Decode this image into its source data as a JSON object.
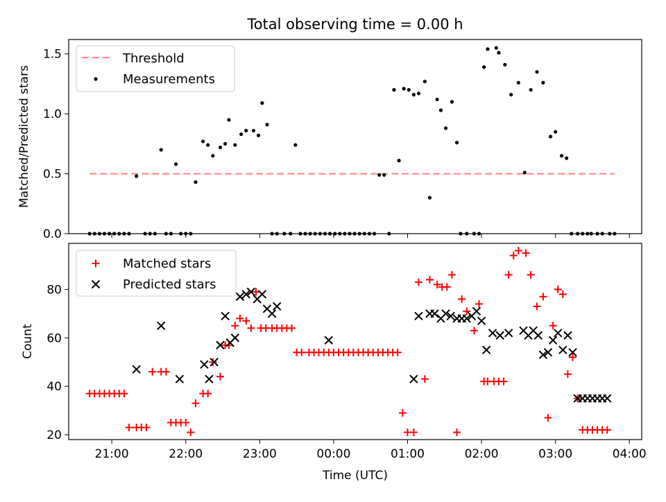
{
  "figure": {
    "title": "Total observing time = 0.00 h"
  },
  "chart_data": [
    {
      "type": "scatter",
      "ylabel": "Matched/Predicted stars",
      "xlabel": "",
      "xlim": [
        "20:25",
        "04:10"
      ],
      "ylim": [
        0,
        1.62
      ],
      "yticks": [
        "0.0",
        "0.5",
        "1.0",
        "1.5"
      ],
      "legend_position": "top-left",
      "threshold": {
        "name": "Threshold",
        "value": 0.5,
        "x_start": "20:42",
        "x_end": "03:48",
        "color": "#ff7f7f",
        "style": "dashed"
      },
      "series": [
        {
          "name": "Measurements",
          "color": "#000000",
          "marker": "dot",
          "x": [
            "20:42",
            "20:46",
            "20:50",
            "20:54",
            "20:58",
            "21:02",
            "21:06",
            "21:10",
            "21:14",
            "21:20",
            "21:27",
            "21:31",
            "21:35",
            "21:40",
            "21:44",
            "21:48",
            "21:52",
            "21:56",
            "22:00",
            "22:04",
            "22:08",
            "22:14",
            "22:18",
            "22:22",
            "22:28",
            "22:32",
            "22:35",
            "22:40",
            "22:45",
            "22:49",
            "22:55",
            "22:59",
            "23:02",
            "23:06",
            "23:10",
            "23:14",
            "23:20",
            "23:25",
            "23:29",
            "23:33",
            "23:37",
            "23:41",
            "23:45",
            "23:49",
            "23:53",
            "23:57",
            "00:01",
            "00:05",
            "00:09",
            "00:13",
            "00:17",
            "00:21",
            "00:25",
            "00:29",
            "00:33",
            "00:37",
            "00:41",
            "00:45",
            "00:49",
            "00:53",
            "00:57",
            "01:01",
            "01:05",
            "01:09",
            "01:14",
            "01:18",
            "01:24",
            "01:27",
            "01:31",
            "01:36",
            "01:40",
            "01:43",
            "01:48",
            "01:54",
            "01:58",
            "02:02",
            "02:05",
            "02:12",
            "02:14",
            "02:19",
            "02:24",
            "02:30",
            "02:35",
            "02:40",
            "02:45",
            "02:50",
            "02:56",
            "03:00",
            "03:05",
            "03:09",
            "03:13",
            "03:18",
            "03:22",
            "03:26",
            "03:29",
            "03:34",
            "03:38",
            "03:44",
            "03:48"
          ],
          "y": [
            0,
            0,
            0,
            0,
            0,
            0,
            0,
            0,
            0,
            0.48,
            0,
            0,
            0,
            0.7,
            0,
            0,
            0.58,
            0,
            0,
            0,
            0.43,
            0.77,
            0.74,
            0.65,
            0.72,
            0.75,
            0.95,
            0.74,
            0.83,
            0.86,
            0.86,
            0.82,
            1.09,
            0.91,
            0,
            0,
            0,
            0,
            0.74,
            0,
            0,
            0,
            0,
            0,
            0,
            0,
            0,
            0,
            0,
            0,
            0,
            0,
            0,
            0,
            0,
            0.49,
            0.49,
            0,
            1.2,
            0.61,
            1.21,
            1.2,
            1.16,
            1.17,
            1.27,
            0.3,
            1.12,
            1.03,
            0.88,
            1.1,
            0.76,
            0,
            0,
            0,
            0,
            1.39,
            1.54,
            1.55,
            1.51,
            1.41,
            1.16,
            1.26,
            0.51,
            1.2,
            1.35,
            1.26,
            0.81,
            0.85,
            0.65,
            0.63,
            0,
            0,
            0,
            0,
            0,
            0,
            0,
            0,
            0
          ]
        }
      ]
    },
    {
      "type": "scatter",
      "xlabel": "Time (UTC)",
      "ylabel": "Count",
      "xlim": [
        "20:25",
        "04:10"
      ],
      "ylim": [
        18,
        99
      ],
      "yticks": [
        "20",
        "40",
        "60",
        "80"
      ],
      "xticks": [
        "21:00",
        "22:00",
        "23:00",
        "00:00",
        "01:00",
        "02:00",
        "03:00",
        "04:00"
      ],
      "legend_position": "top-left",
      "series": [
        {
          "name": "Matched stars",
          "color": "#ff0000",
          "marker": "plus",
          "x": [
            "20:42",
            "20:46",
            "20:50",
            "20:54",
            "20:58",
            "21:02",
            "21:06",
            "21:10",
            "21:14",
            "21:20",
            "21:24",
            "21:28",
            "21:33",
            "21:40",
            "21:44",
            "21:48",
            "21:52",
            "21:56",
            "22:00",
            "22:04",
            "22:08",
            "22:14",
            "22:18",
            "22:22",
            "22:28",
            "22:32",
            "22:35",
            "22:40",
            "22:44",
            "22:49",
            "22:53",
            "22:57",
            "23:01",
            "23:05",
            "23:10",
            "23:14",
            "23:18",
            "23:22",
            "23:26",
            "23:30",
            "23:34",
            "23:40",
            "23:44",
            "23:48",
            "23:52",
            "23:56",
            "00:00",
            "00:04",
            "00:08",
            "00:12",
            "00:16",
            "00:20",
            "00:24",
            "00:28",
            "00:32",
            "00:36",
            "00:40",
            "00:44",
            "00:48",
            "00:52",
            "00:56",
            "01:00",
            "01:05",
            "01:09",
            "01:14",
            "01:18",
            "01:24",
            "01:28",
            "01:32",
            "01:36",
            "01:40",
            "01:44",
            "01:48",
            "01:54",
            "01:58",
            "02:02",
            "02:05",
            "02:10",
            "02:14",
            "02:18",
            "02:22",
            "02:26",
            "02:30",
            "02:36",
            "02:40",
            "02:45",
            "02:50",
            "02:54",
            "02:58",
            "03:02",
            "03:06",
            "03:10",
            "03:14",
            "03:18",
            "03:22",
            "03:26",
            "03:30",
            "03:34",
            "03:38",
            "03:42"
          ],
          "y": [
            37,
            37,
            37,
            37,
            37,
            37,
            37,
            37,
            23,
            23,
            23,
            23,
            46,
            46,
            46,
            25,
            25,
            25,
            25,
            21,
            33,
            37,
            37,
            50,
            44,
            57,
            57,
            65,
            68,
            67,
            64,
            79,
            64,
            64,
            64,
            64,
            64,
            64,
            64,
            54,
            54,
            54,
            54,
            54,
            54,
            54,
            54,
            54,
            54,
            54,
            54,
            54,
            54,
            54,
            54,
            54,
            54,
            54,
            54,
            54,
            29,
            21,
            21,
            83,
            43,
            84,
            82,
            81,
            81,
            86,
            21,
            76,
            71,
            63,
            74,
            42,
            42,
            42,
            42,
            42,
            86,
            94,
            96,
            95,
            86,
            73,
            77,
            27,
            65,
            80,
            78,
            45,
            52,
            35,
            22,
            22,
            22,
            22,
            22,
            22
          ]
        },
        {
          "name": "Predicted stars",
          "color": "#000000",
          "marker": "x",
          "x": [
            "21:20",
            "21:40",
            "21:55",
            "22:15",
            "22:19",
            "22:23",
            "22:28",
            "22:32",
            "22:36",
            "22:40",
            "22:44",
            "22:49",
            "22:53",
            "22:58",
            "23:02",
            "23:06",
            "23:10",
            "23:14",
            "23:56",
            "01:05",
            "01:09",
            "01:18",
            "01:22",
            "01:27",
            "01:31",
            "01:35",
            "01:40",
            "01:44",
            "01:48",
            "01:52",
            "01:56",
            "02:00",
            "02:04",
            "02:09",
            "02:15",
            "02:22",
            "02:34",
            "02:38",
            "02:42",
            "02:46",
            "02:50",
            "02:54",
            "02:58",
            "03:02",
            "03:06",
            "03:10",
            "03:14",
            "03:18",
            "03:22",
            "03:26",
            "03:30",
            "03:34",
            "03:38",
            "03:42"
          ],
          "y": [
            47,
            65,
            43,
            49,
            43,
            50,
            57,
            69,
            58,
            60,
            77,
            78,
            79,
            76,
            78,
            72,
            70,
            73,
            59,
            43,
            69,
            70,
            70,
            68,
            70,
            69,
            68,
            68,
            68,
            69,
            71,
            67,
            55,
            62,
            61,
            62,
            63,
            61,
            63,
            61,
            53,
            54,
            59,
            62,
            55,
            61,
            54,
            35,
            35,
            35,
            35,
            35,
            35,
            35
          ]
        }
      ]
    }
  ]
}
